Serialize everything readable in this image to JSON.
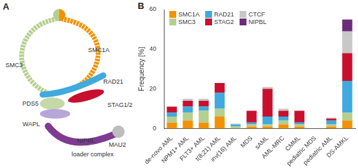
{
  "panel_labels": [
    "A",
    "B"
  ],
  "diagram": {
    "nodes": [
      {
        "label": "SMC3"
      },
      {
        "label": "SMC1A"
      },
      {
        "label": "RAD21"
      },
      {
        "label": "PDS5"
      },
      {
        "label": "STAG1/2"
      },
      {
        "label": "WAPL"
      },
      {
        "label": "MAU2"
      },
      {
        "label": "NIPBL"
      },
      {
        "label": "loader complex"
      }
    ]
  },
  "chart_data": {
    "type": "bar",
    "y_label": "Frequency [%]",
    "categories": [
      "de-novo AML",
      "NPM1+ AML",
      "FLT3+ AML",
      "t(8;21) AML",
      "inv(16) AML",
      "MDS",
      "sAML",
      "AML-MRC",
      "CMML",
      "pediatric MDS",
      "pediatric AML",
      "DS-AMKL"
    ],
    "series": [
      {
        "name": "SMC1A",
        "color": "#f39200",
        "values": [
          3,
          4,
          3,
          6,
          0,
          1,
          1,
          2,
          1,
          0,
          1,
          4
        ]
      },
      {
        "name": "SMC3",
        "color": "#b5cf8e",
        "values": [
          3,
          4,
          6,
          4,
          1,
          1,
          1,
          2,
          1,
          0,
          1,
          4
        ]
      },
      {
        "name": "RAD21",
        "color": "#3fa9e0",
        "values": [
          2,
          3,
          2,
          8,
          1,
          1,
          4,
          2,
          1,
          0,
          2,
          16
        ]
      },
      {
        "name": "STAG2",
        "color": "#c8102e",
        "values": [
          3,
          3,
          3,
          5,
          0,
          6,
          14,
          3,
          6,
          0,
          1,
          14
        ]
      },
      {
        "name": "CTCF",
        "color": "#c8c8c8",
        "values": [
          0,
          1,
          1,
          0,
          0.5,
          0,
          1,
          1,
          0,
          0,
          0.5,
          11
        ]
      },
      {
        "name": "NIPBL",
        "color": "#6b2c7a",
        "values": [
          0,
          0,
          0,
          0,
          0,
          0,
          0,
          0,
          0,
          0,
          0,
          6
        ]
      }
    ],
    "ylim": [
      0,
      60
    ],
    "yticks": [
      0,
      20,
      40,
      60
    ],
    "stacked": true,
    "grid": false,
    "legend": "top-left"
  }
}
